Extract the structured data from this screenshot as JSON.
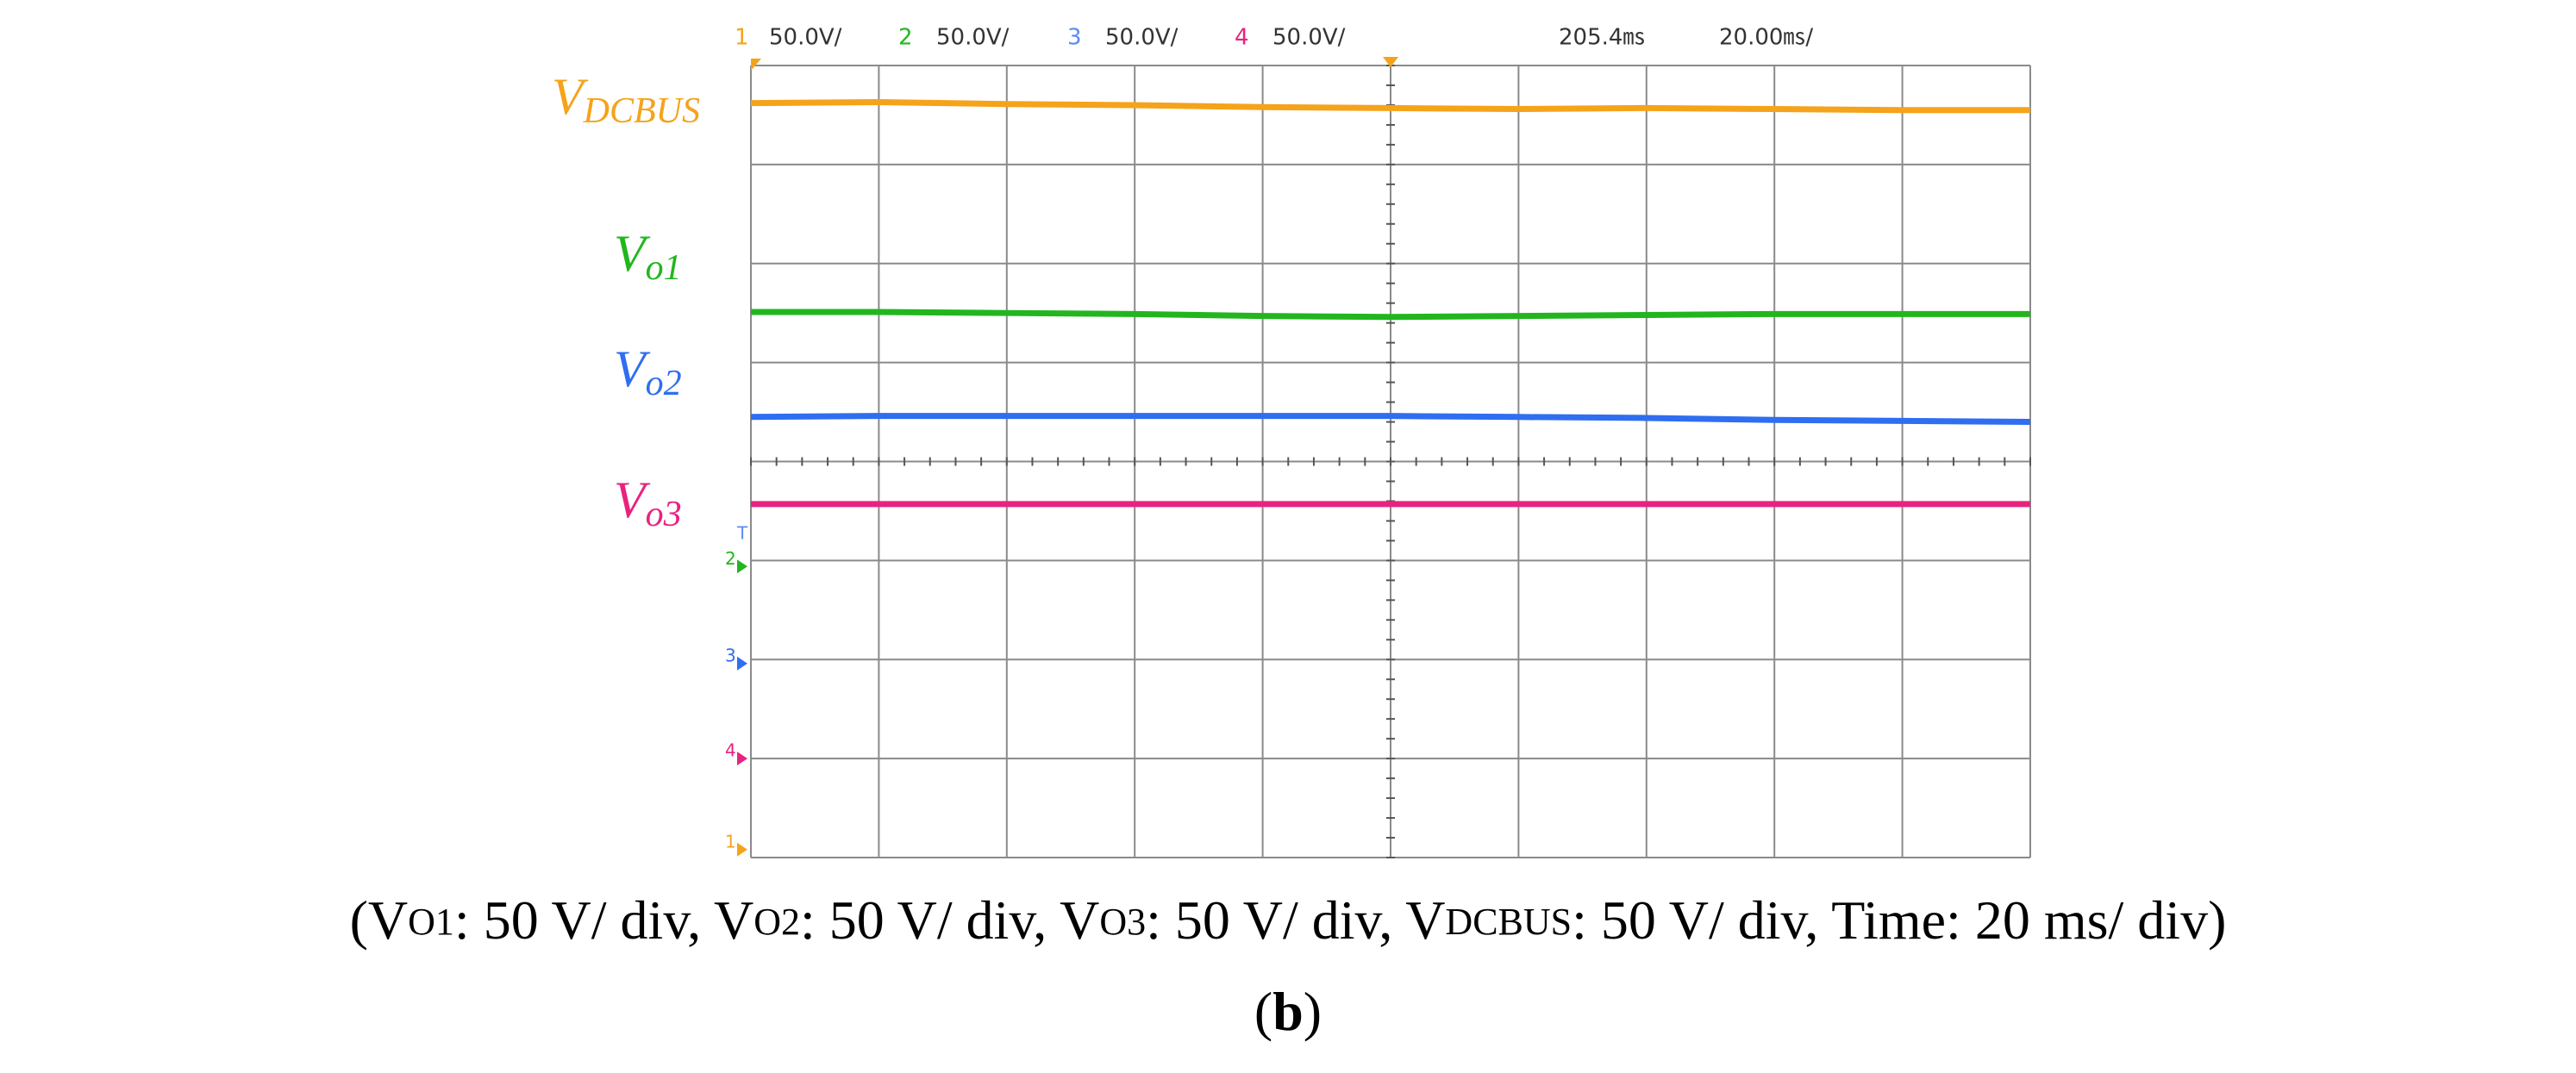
{
  "chart_data": {
    "type": "line",
    "header": {
      "channels": [
        {
          "num": "1",
          "scale": "50.0V/",
          "color": "#f5a31a"
        },
        {
          "num": "2",
          "scale": "50.0V/",
          "color": "#22b61e"
        },
        {
          "num": "3",
          "scale": "50.0V/",
          "color": "#5b8cf0"
        },
        {
          "num": "4",
          "scale": "50.0V/",
          "color": "#e8237f"
        }
      ],
      "delay": "205.4㎳",
      "timebase": "20.00㎳/"
    },
    "x": [
      0,
      20,
      40,
      60,
      80,
      100,
      120,
      140,
      160,
      180,
      200
    ],
    "xlim": [
      0,
      200
    ],
    "ylim": [
      0,
      8
    ],
    "grid": {
      "x_divisions": 10,
      "y_divisions": 8
    },
    "trigger_marker": "T",
    "series": [
      {
        "label": {
          "main": "V",
          "sub": "DCBUS"
        },
        "marker": "1",
        "ground": 0.08,
        "color": "#f5a31a",
        "values": [
          7.62,
          7.63,
          7.61,
          7.6,
          7.58,
          7.57,
          7.56,
          7.57,
          7.56,
          7.55,
          7.55
        ]
      },
      {
        "label": {
          "main": "V",
          "sub": "o1"
        },
        "marker": "2",
        "ground": 2.94,
        "color": "#22b61e",
        "values": [
          5.51,
          5.51,
          5.5,
          5.49,
          5.47,
          5.46,
          5.47,
          5.48,
          5.49,
          5.49,
          5.49
        ]
      },
      {
        "label": {
          "main": "V",
          "sub": "o2"
        },
        "marker": "3",
        "ground": 1.96,
        "color": "#2f6ef0",
        "values": [
          4.45,
          4.46,
          4.46,
          4.46,
          4.46,
          4.46,
          4.45,
          4.44,
          4.42,
          4.41,
          4.4
        ]
      },
      {
        "label": {
          "main": "V",
          "sub": "o3"
        },
        "marker": "4",
        "ground": 1.0,
        "color": "#e8237f",
        "values": [
          3.57,
          3.57,
          3.57,
          3.57,
          3.57,
          3.57,
          3.57,
          3.57,
          3.57,
          3.57,
          3.57
        ]
      }
    ],
    "caption": [
      {
        "main": "(V",
        "sub": "O1",
        "rest": ": 50 V/ div, "
      },
      {
        "main": "V",
        "sub": "O2",
        "rest": ": 50 V/ div, "
      },
      {
        "main": "V",
        "sub": "O3",
        "rest": ": 50 V/ div, "
      },
      {
        "main": "V",
        "sub": "DCBUS",
        "rest": ": 50 V/ div, Time: 20 ms/ div)"
      }
    ],
    "panel_label": {
      "open": "(",
      "letter": "b",
      "close": ")"
    }
  }
}
